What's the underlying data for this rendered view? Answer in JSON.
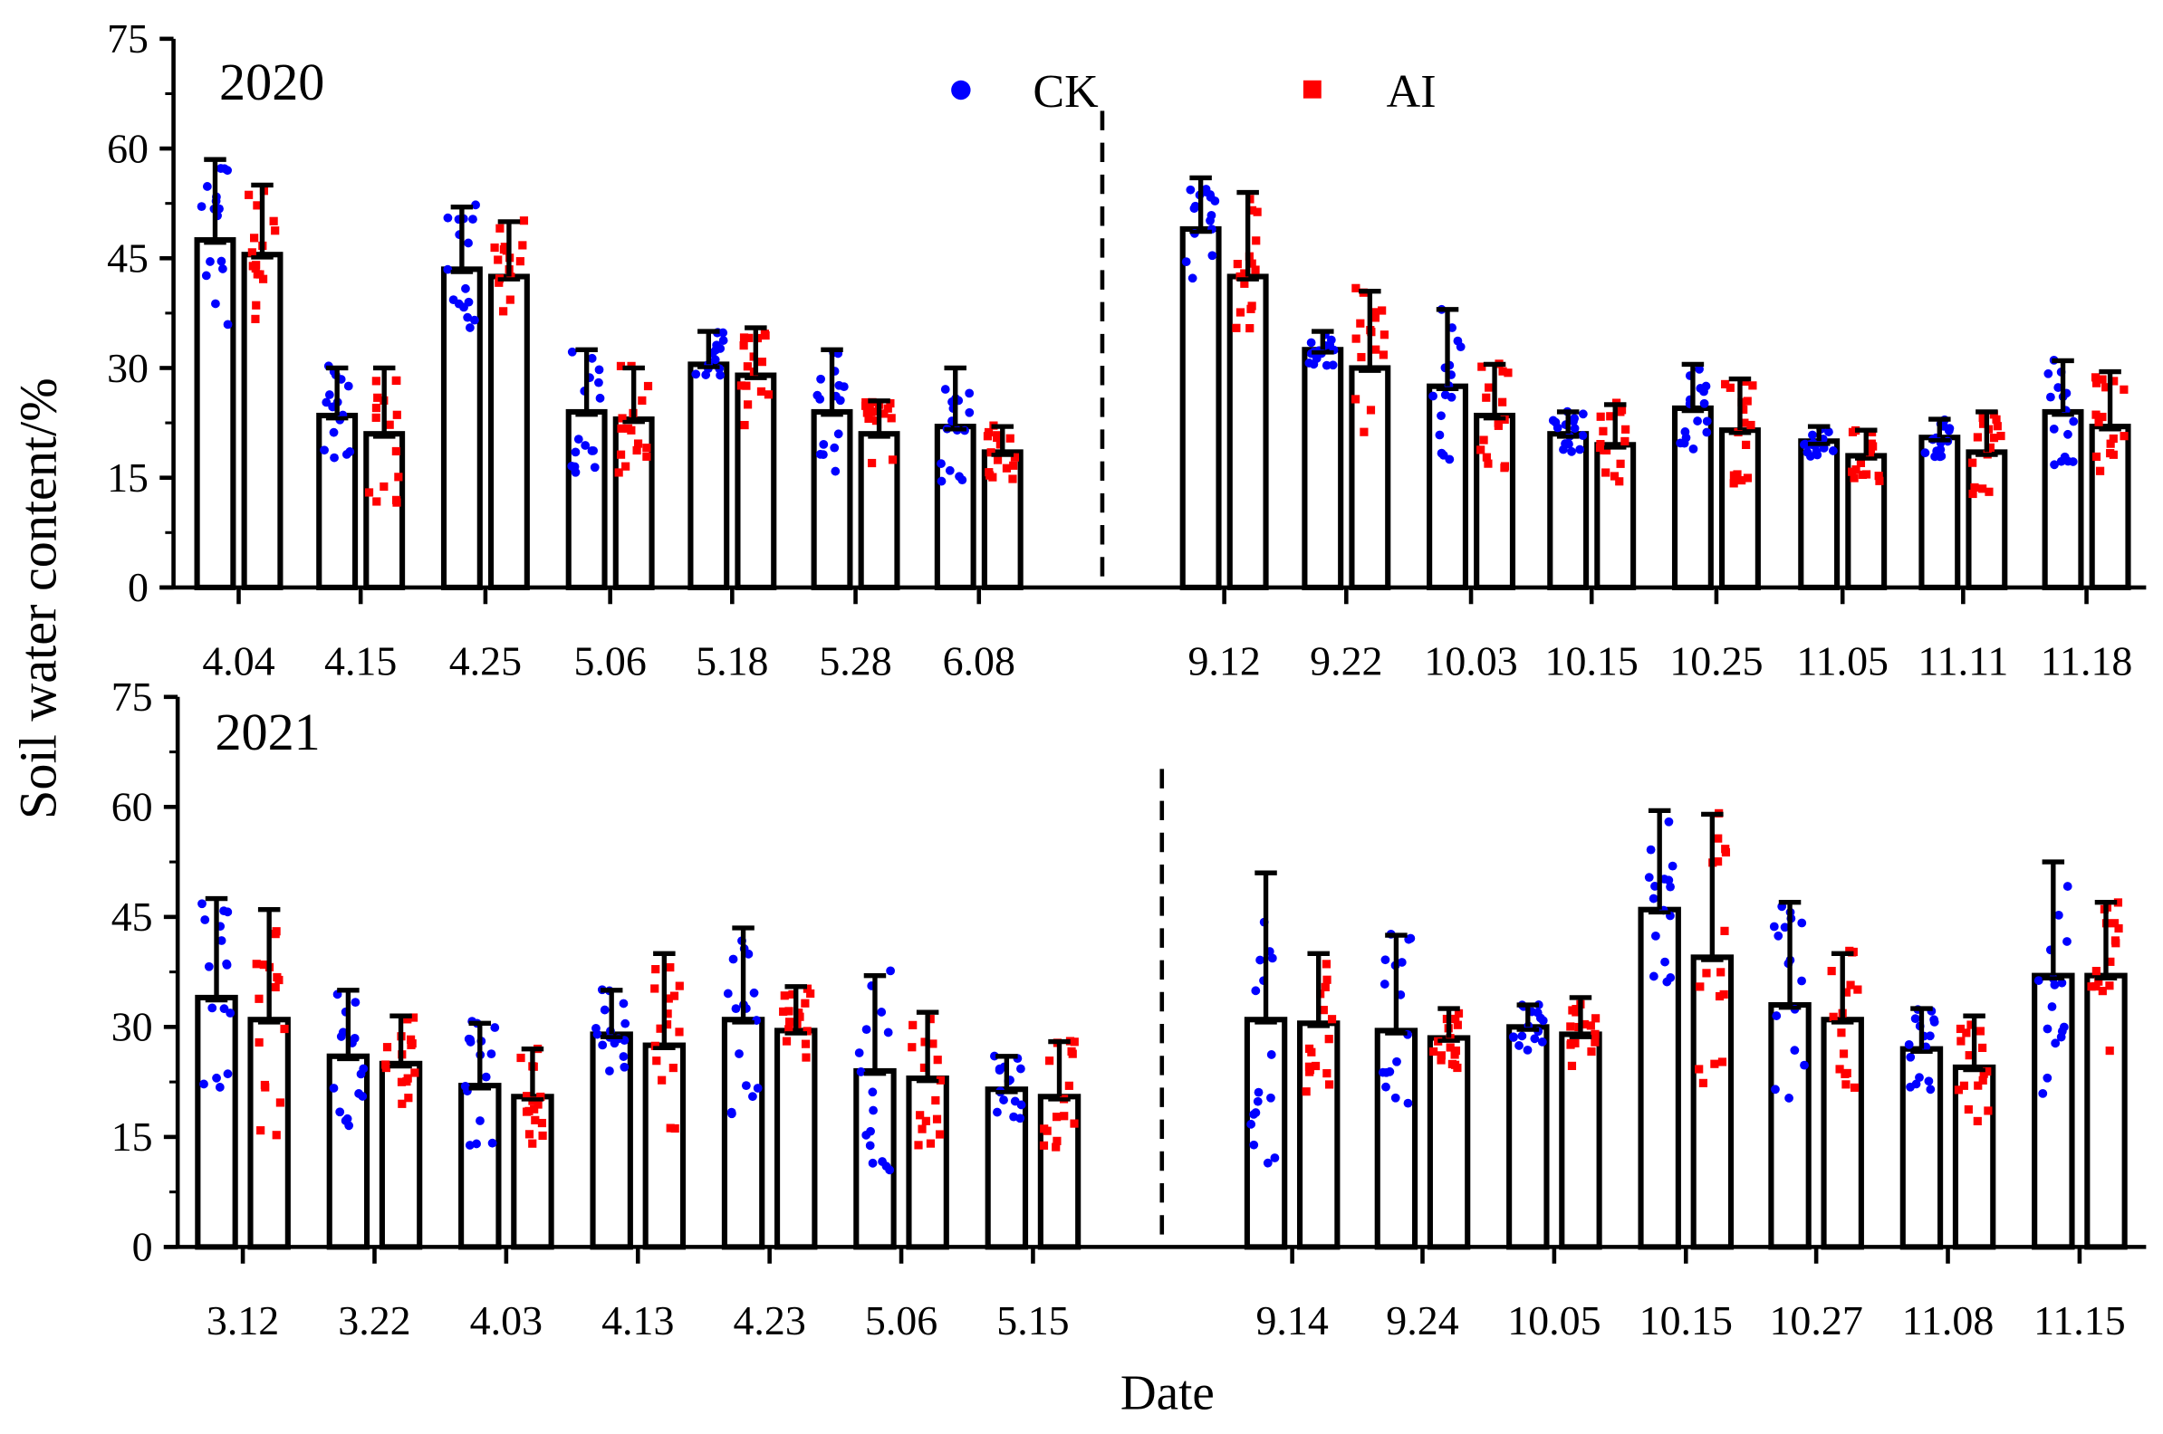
{
  "chart_data": {
    "type": "bar",
    "ylabel": "Soil water content/%",
    "xlabel": "Date",
    "ylim": [
      0,
      75
    ],
    "yticks": [
      0,
      15,
      30,
      45,
      60,
      75
    ],
    "legend": {
      "placement": "top-center",
      "entries": [
        {
          "name": "CK",
          "color": "#0000ff",
          "marker": "circle"
        },
        {
          "name": "AI",
          "color": "#ff0000",
          "marker": "square"
        }
      ]
    },
    "points_per_bar": 16,
    "panels": [
      {
        "title": "2020",
        "categories": [
          "4.04",
          "4.15",
          "4.25",
          "5.06",
          "5.18",
          "5.28",
          "6.08",
          "9.12",
          "9.22",
          "10.03",
          "10.15",
          "10.25",
          "11.05",
          "11.11",
          "11.18"
        ],
        "break_after_index": 6,
        "series": [
          {
            "name": "CK",
            "values": [
              47.5,
              23.5,
              43.5,
              24,
              30.5,
              24,
              22,
              49,
              32.5,
              27.5,
              21,
              24.5,
              20,
              20.5,
              24
            ],
            "error_upper": [
              58.5,
              30,
              52,
              32.5,
              35,
              32.5,
              30,
              56,
              35,
              38,
              24,
              30.5,
              22,
              23,
              31
            ]
          },
          {
            "name": "AI",
            "values": [
              45.5,
              21,
              42.5,
              23,
              29,
              21,
              18.5,
              42.5,
              30,
              23.5,
              19.5,
              21.5,
              18,
              18.5,
              22
            ],
            "error_upper": [
              55,
              30,
              50,
              30,
              35.5,
              25.5,
              22,
              54,
              40.5,
              30.5,
              25,
              28.5,
              21.5,
              24,
              29.5
            ]
          }
        ]
      },
      {
        "title": "2021",
        "categories": [
          "3.12",
          "3.22",
          "4.03",
          "4.13",
          "4.23",
          "5.06",
          "5.15",
          "9.14",
          "9.24",
          "10.05",
          "10.15",
          "10.27",
          "11.08",
          "11.15"
        ],
        "break_after_index": 6,
        "series": [
          {
            "name": "CK",
            "values": [
              34,
              26,
              22,
              29,
              31,
              24,
              21.5,
              31,
              29.5,
              30,
              46,
              33,
              27,
              37
            ],
            "error_upper": [
              47.5,
              35,
              30.5,
              35,
              43.5,
              37,
              26,
              51,
              42.5,
              33,
              59.5,
              47,
              32.5,
              52.5
            ]
          },
          {
            "name": "AI",
            "values": [
              31,
              25,
              20.5,
              27.5,
              29.5,
              23,
              20.5,
              30.5,
              28.5,
              29,
              39.5,
              31,
              24.5,
              37
            ],
            "error_upper": [
              46,
              31.5,
              27,
              40,
              35.5,
              32,
              28,
              40,
              32.5,
              34,
              59,
              40,
              31.5,
              47
            ]
          }
        ]
      }
    ]
  }
}
